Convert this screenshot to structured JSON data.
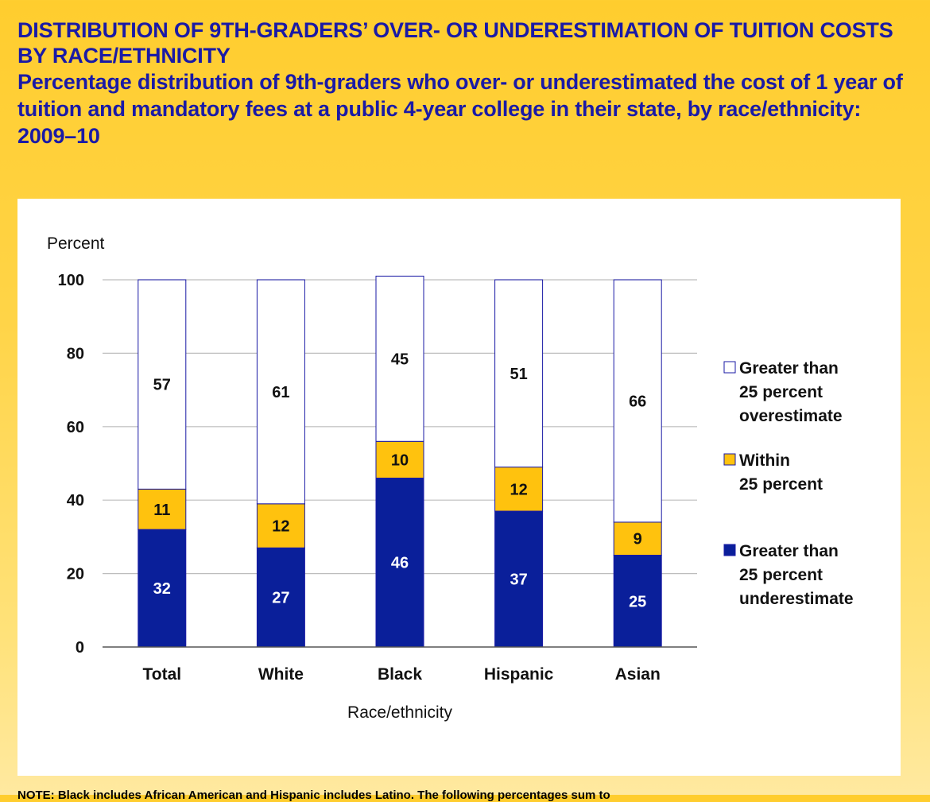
{
  "title": "DISTRIBUTION OF 9TH-GRADERS’ OVER- OR UNDERESTIMATION OF TUITION COSTS BY RACE/ETHNICITY",
  "subtitle": "Percentage distribution of 9th-graders who over- or underestimated the cost of 1 year of tuition and mandatory fees at a public 4-year college in their state, by race/ethnicity: 2009–10",
  "note": "NOTE: Black includes African American and Hispanic includes Latino. The following percentages sum to",
  "colors": {
    "under": "#0a1f9a",
    "within": "#ffc20e",
    "over": "#ffffff",
    "bar_border": "#1a1aa6",
    "grid": "#bdbdbd"
  },
  "chart_data": {
    "type": "bar",
    "stacked": true,
    "categories": [
      "Total",
      "White",
      "Black",
      "Hispanic",
      "Asian"
    ],
    "series": [
      {
        "name": "Greater than 25 percent underestimate",
        "color_key": "under",
        "values": [
          32,
          27,
          46,
          37,
          25
        ]
      },
      {
        "name": "Within 25 percent",
        "color_key": "within",
        "values": [
          11,
          12,
          10,
          12,
          9
        ]
      },
      {
        "name": "Greater than 25 percent overestimate",
        "color_key": "over",
        "values": [
          57,
          61,
          45,
          51,
          66
        ]
      }
    ],
    "legend": [
      {
        "lines": [
          "Greater than",
          "25 percent",
          "overestimate"
        ],
        "color_key": "over"
      },
      {
        "lines": [
          "Within",
          "25 percent"
        ],
        "color_key": "within"
      },
      {
        "lines": [
          "Greater than",
          "25 percent",
          "underestimate"
        ],
        "color_key": "under"
      }
    ],
    "legend_position": "right",
    "xlabel": "Race/ethnicity",
    "ylabel": "Percent",
    "ylim": [
      0,
      100
    ],
    "yticks": [
      0,
      20,
      40,
      60,
      80,
      100
    ],
    "grid": true
  }
}
